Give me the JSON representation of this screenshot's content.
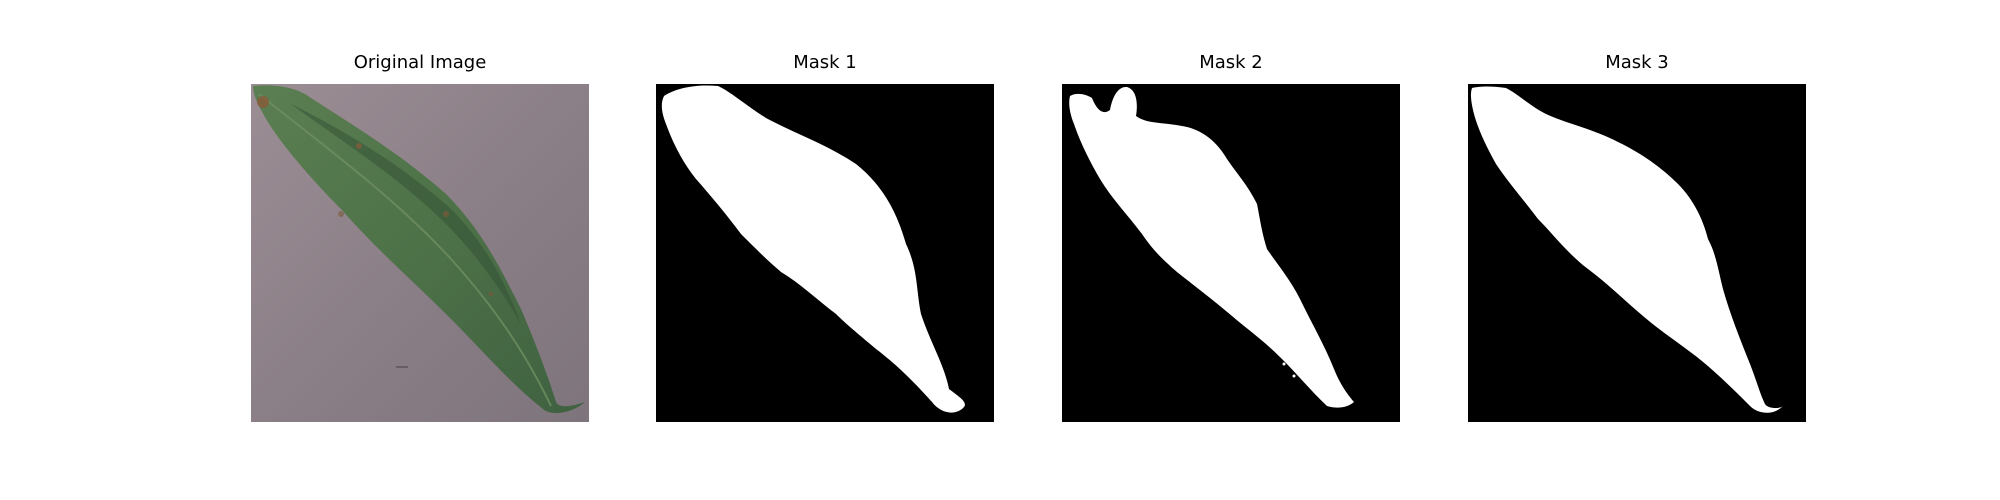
{
  "panels": [
    {
      "title": "Original Image"
    },
    {
      "title": "Mask 1"
    },
    {
      "title": "Mask 2"
    },
    {
      "title": "Mask 3"
    }
  ],
  "colors": {
    "background_surface": "#8b7f86",
    "leaf_main": "#4e7148",
    "leaf_shadow": "#2f4c30",
    "mask_background": "#000000",
    "mask_foreground": "#ffffff"
  }
}
